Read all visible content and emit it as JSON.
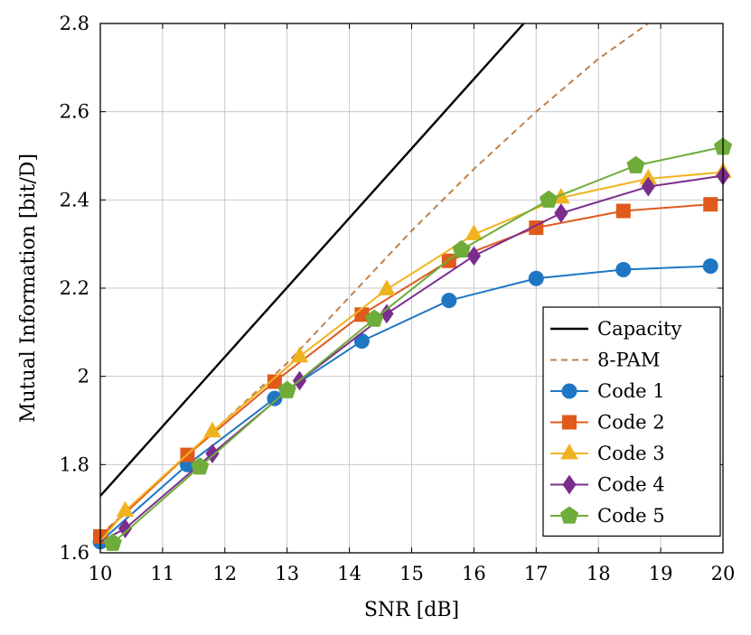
{
  "chart_data": {
    "type": "line",
    "xlabel": "SNR [dB]",
    "ylabel": "Mutual Information [bit/D]",
    "xlim": [
      10,
      20
    ],
    "ylim": [
      1.6,
      2.8
    ],
    "xticks": [
      10,
      11,
      12,
      13,
      14,
      15,
      16,
      17,
      18,
      19,
      20
    ],
    "xtick_labels": [
      "10",
      "11",
      "12",
      "13",
      "14",
      "15",
      "16",
      "17",
      "18",
      "19",
      "20"
    ],
    "yticks": [
      1.6,
      1.8,
      2.0,
      2.2,
      2.4,
      2.6,
      2.8
    ],
    "ytick_labels": [
      "1.6",
      "1.8",
      "2",
      "2.2",
      "2.4",
      "2.6",
      "2.8"
    ],
    "grid": true,
    "legend_position": "bottom-right",
    "series": [
      {
        "name": "Capacity",
        "color": "#000000",
        "dash": "solid",
        "marker": "none",
        "x": [
          10,
          16.8
        ],
        "y": [
          1.729,
          2.8
        ]
      },
      {
        "name": "8-PAM",
        "color": "#c0804a",
        "dash": "dashed",
        "marker": "none",
        "x": [
          10,
          11,
          12,
          13,
          14,
          15,
          16,
          17,
          18,
          18.5,
          18.8
        ],
        "y": [
          1.64,
          1.77,
          1.9,
          2.03,
          2.18,
          2.33,
          2.47,
          2.6,
          2.72,
          2.77,
          2.8
        ]
      },
      {
        "name": "Code 1",
        "color": "#1f77c4",
        "dash": "solid",
        "marker": "circle",
        "x": [
          10,
          11.4,
          12.8,
          14.2,
          15.6,
          17,
          18.4,
          19.8
        ],
        "y": [
          1.625,
          1.8,
          1.95,
          2.08,
          2.172,
          2.222,
          2.242,
          2.25
        ]
      },
      {
        "name": "Code 2",
        "color": "#e05a1c",
        "dash": "solid",
        "marker": "square",
        "x": [
          10,
          11.4,
          12.8,
          14.2,
          15.6,
          17,
          18.4,
          19.8
        ],
        "y": [
          1.637,
          1.822,
          1.988,
          2.14,
          2.262,
          2.337,
          2.375,
          2.39
        ]
      },
      {
        "name": "Code 3",
        "color": "#f0b320",
        "dash": "solid",
        "marker": "triangle",
        "x": [
          10,
          10.4,
          11.8,
          13.2,
          14.6,
          16,
          17.4,
          18.8,
          20
        ],
        "y": [
          1.625,
          1.695,
          1.875,
          2.045,
          2.197,
          2.322,
          2.405,
          2.448,
          2.463
        ]
      },
      {
        "name": "Code 4",
        "color": "#7b2d8e",
        "dash": "solid",
        "marker": "diamond",
        "x": [
          10,
          10.4,
          11.8,
          13.2,
          14.6,
          16,
          17.4,
          18.8,
          20
        ],
        "y": [
          1.625,
          1.655,
          1.825,
          1.99,
          2.142,
          2.273,
          2.37,
          2.43,
          2.455
        ]
      },
      {
        "name": "Code 5",
        "color": "#6fac3a",
        "dash": "solid",
        "marker": "pentagon",
        "x": [
          10.2,
          11.6,
          13,
          14.4,
          15.8,
          17.2,
          18.6,
          20
        ],
        "y": [
          1.622,
          1.795,
          1.968,
          2.13,
          2.287,
          2.4,
          2.478,
          2.52
        ]
      }
    ]
  }
}
